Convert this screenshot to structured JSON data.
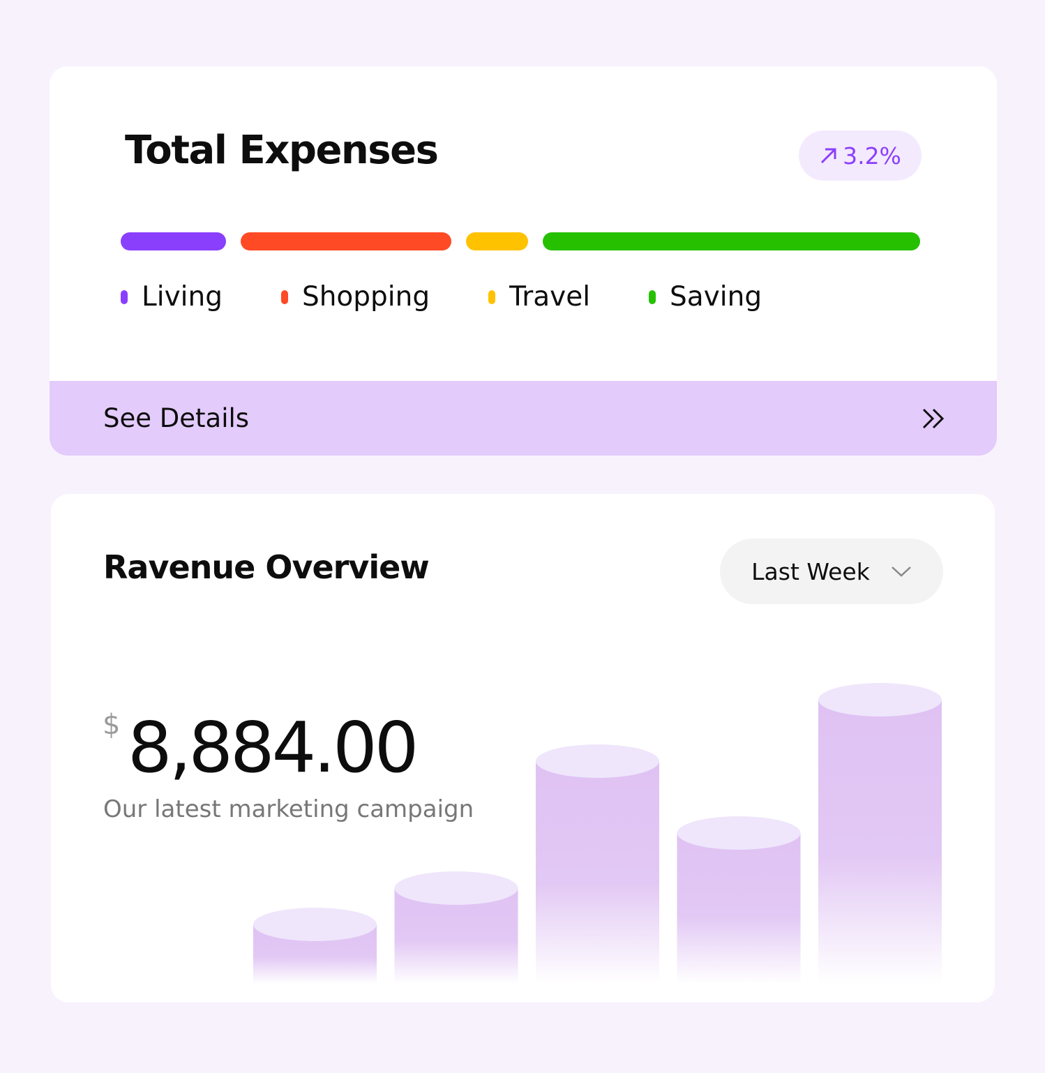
{
  "expenses": {
    "title": "Total Expenses",
    "change": "3.2%",
    "segments": [
      {
        "name": "Living",
        "color": "#8a3ffc",
        "value": 151
      },
      {
        "name": "Shopping",
        "color": "#ff4a26",
        "value": 302
      },
      {
        "name": "Travel",
        "color": "#ffc200",
        "value": 89
      },
      {
        "name": "Saving",
        "color": "#26c000",
        "value": 541
      }
    ],
    "action": "See Details"
  },
  "revenue": {
    "title": "Ravenue Overview",
    "period": "Last Week",
    "currency": "$",
    "amount": "8,884.00",
    "caption": "Our latest marketing campaign",
    "bars": {
      "values": [
        85,
        137,
        319,
        216,
        407
      ],
      "color": "#dfc2f3",
      "cap_color": "#efe6fb"
    }
  }
}
